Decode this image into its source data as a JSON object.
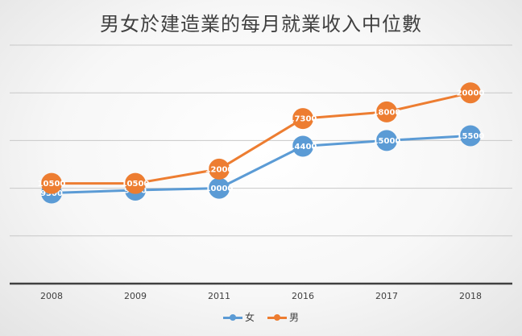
{
  "chart_data": {
    "type": "line",
    "title": "男女於建造業的每月就業收入中位數",
    "categories": [
      "2008",
      "2009",
      "2011",
      "2016",
      "2017",
      "2018"
    ],
    "series": [
      {
        "name": "女",
        "color": "#5b9bd5",
        "values": [
          9500,
          9800,
          10000,
          14400,
          15000,
          15500
        ],
        "labels": [
          "9500",
          "9800",
          "10000",
          "14400",
          "15000",
          "15500"
        ]
      },
      {
        "name": "男",
        "color": "#ed7d31",
        "values": [
          10500,
          10500,
          12000,
          17300,
          18000,
          20000
        ],
        "labels": [
          "10500",
          "10500",
          "12000",
          "17300",
          "18000",
          "20000"
        ]
      }
    ],
    "ylim": [
      0,
      25000
    ],
    "gridlines": [
      5000,
      10000,
      15000,
      20000,
      25000
    ],
    "grid": true,
    "legend": "bottom"
  }
}
